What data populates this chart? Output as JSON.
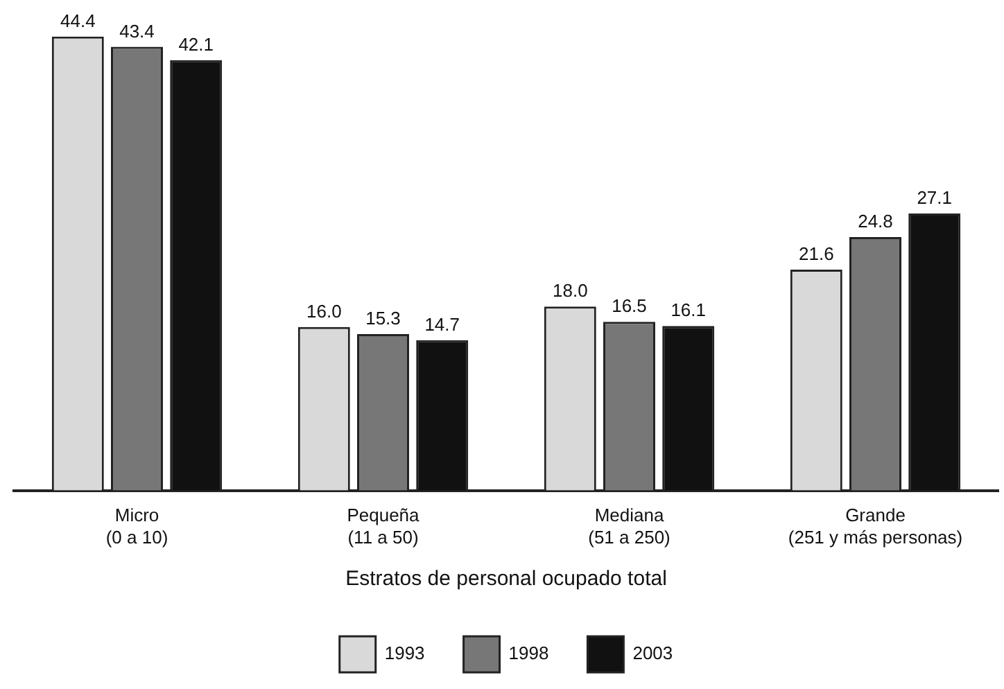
{
  "chart_data": {
    "type": "bar",
    "xlabel": "Estratos de personal ocupado total",
    "categories": [
      "Micro\n(0 a 10)",
      "Pequeña\n(11 a 50)",
      "Mediana\n(51 a 250)",
      "Grande\n(251 y más personas)"
    ],
    "series": [
      {
        "name": "1993",
        "color": "#d9d9d9",
        "values": [
          44.4,
          16.0,
          18.0,
          21.6
        ],
        "value_labels": [
          "44.4",
          "16.0",
          "18.0",
          "21.6"
        ]
      },
      {
        "name": "1998",
        "color": "#777777",
        "values": [
          43.4,
          15.3,
          16.5,
          24.8
        ],
        "value_labels": [
          "43.4",
          "15.3",
          "16.5",
          "24.8"
        ]
      },
      {
        "name": "2003",
        "color": "#111111",
        "values": [
          42.1,
          14.7,
          16.1,
          27.1
        ],
        "value_labels": [
          "42.1",
          "14.7",
          "16.1",
          "27.1"
        ]
      }
    ],
    "legend": "bottom",
    "grid": false
  }
}
